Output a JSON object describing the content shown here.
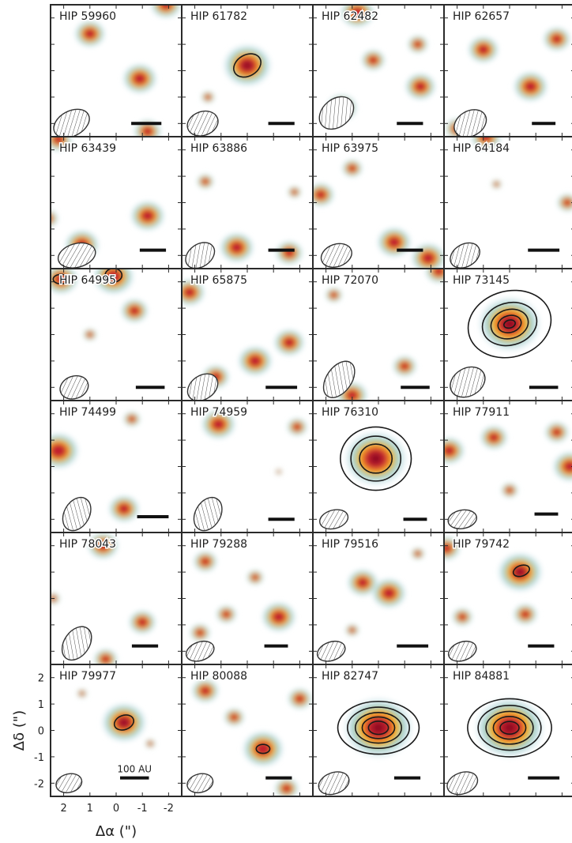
{
  "chart_data": {
    "type": "heatmap",
    "layout": {
      "rows": 6,
      "cols": 4,
      "clipped_right_edge": true
    },
    "xlabel": "Δα (\")",
    "ylabel": "Δδ (\")",
    "xlim": [
      2.5,
      -2.5
    ],
    "ylim": [
      -2.5,
      2.5
    ],
    "x_ticks": [
      2,
      1,
      0,
      -1,
      -2
    ],
    "y_ticks": [
      2,
      1,
      0,
      -1,
      -2
    ],
    "scale_bar_label": "100 AU",
    "panels": [
      {
        "name": "HIP 59960",
        "beam": {
          "x": 1.7,
          "y": -2.0,
          "major": 1.45,
          "minor": 0.95,
          "angle": -28
        },
        "scale_bar": {
          "x": -1.15,
          "y": -2.0,
          "length": 1.15
        },
        "blobs": [
          {
            "x": 1.0,
            "y": 1.4,
            "amp": 0.9
          },
          {
            "x": -0.9,
            "y": -0.3,
            "amp": 1.0
          },
          {
            "x": -1.9,
            "y": 2.5,
            "amp": 0.9
          },
          {
            "x": -1.2,
            "y": -2.3,
            "amp": 0.8
          }
        ],
        "contours": []
      },
      {
        "name": "HIP 61782",
        "beam": {
          "x": 1.7,
          "y": -2.0,
          "major": 1.2,
          "minor": 0.9,
          "angle": -20
        },
        "scale_bar": {
          "x": -1.3,
          "y": -2.0,
          "length": 1.0
        },
        "blobs": [
          {
            "x": 0.0,
            "y": 0.2,
            "amp": 1.4
          },
          {
            "x": 1.5,
            "y": -1.0,
            "amp": 0.4
          }
        ],
        "contours": [
          {
            "x": 0.0,
            "y": 0.2,
            "rx": 0.55,
            "ry": 0.4,
            "angle": -30
          }
        ]
      },
      {
        "name": "HIP 62482",
        "beam": {
          "x": 1.6,
          "y": -1.6,
          "major": 1.45,
          "minor": 1.05,
          "angle": -40
        },
        "scale_bar": {
          "x": -1.2,
          "y": -2.0,
          "length": 1.0
        },
        "blobs": [
          {
            "x": 0.8,
            "y": 2.2,
            "amp": 1.0
          },
          {
            "x": 0.2,
            "y": 0.4,
            "amp": 0.7
          },
          {
            "x": -1.6,
            "y": -0.6,
            "amp": 0.9
          },
          {
            "x": 1.4,
            "y": -1.4,
            "amp": 0.9
          },
          {
            "x": -1.5,
            "y": 1.0,
            "amp": 0.6
          }
        ],
        "contours": []
      },
      {
        "name": "HIP 62657",
        "beam": {
          "x": 1.5,
          "y": -2.0,
          "major": 1.3,
          "minor": 0.95,
          "angle": -30
        },
        "scale_bar": {
          "x": -1.3,
          "y": -2.0,
          "length": 0.9
        },
        "blobs": [
          {
            "x": 1.0,
            "y": 0.8,
            "amp": 0.9
          },
          {
            "x": -0.8,
            "y": -0.6,
            "amp": 1.0
          },
          {
            "x": -1.8,
            "y": 1.2,
            "amp": 0.8
          },
          {
            "x": 2.0,
            "y": -2.2,
            "amp": 0.7
          }
        ],
        "contours": []
      },
      {
        "name": "HIP 63439",
        "beam": {
          "x": 1.5,
          "y": -2.0,
          "major": 1.45,
          "minor": 0.9,
          "angle": -15
        },
        "scale_bar": {
          "x": -1.4,
          "y": -1.8,
          "length": 1.0
        },
        "blobs": [
          {
            "x": 2.2,
            "y": 2.4,
            "amp": 0.8
          },
          {
            "x": 1.3,
            "y": -1.6,
            "amp": 1.0
          },
          {
            "x": -1.2,
            "y": -0.5,
            "amp": 1.0
          },
          {
            "x": 2.6,
            "y": -0.6,
            "amp": 0.6
          }
        ],
        "contours": []
      },
      {
        "name": "HIP 63886",
        "beam": {
          "x": 1.8,
          "y": -2.0,
          "major": 1.2,
          "minor": 0.85,
          "angle": -35
        },
        "scale_bar": {
          "x": -1.3,
          "y": -1.8,
          "length": 1.0
        },
        "blobs": [
          {
            "x": 0.4,
            "y": -1.7,
            "amp": 1.0
          },
          {
            "x": -1.6,
            "y": -1.9,
            "amp": 0.8
          },
          {
            "x": 1.6,
            "y": 0.8,
            "amp": 0.5
          },
          {
            "x": -1.8,
            "y": 0.4,
            "amp": 0.4
          }
        ],
        "contours": []
      },
      {
        "name": "HIP 63975",
        "beam": {
          "x": 1.6,
          "y": -2.0,
          "major": 1.2,
          "minor": 0.85,
          "angle": -20
        },
        "scale_bar": {
          "x": -1.2,
          "y": -1.8,
          "length": 1.0
        },
        "blobs": [
          {
            "x": 2.2,
            "y": 0.3,
            "amp": 0.8
          },
          {
            "x": -0.6,
            "y": -1.5,
            "amp": 1.0
          },
          {
            "x": -1.9,
            "y": -2.1,
            "amp": 1.0
          },
          {
            "x": 1.0,
            "y": 1.3,
            "amp": 0.6
          }
        ],
        "contours": []
      },
      {
        "name": "HIP 64184",
        "beam": {
          "x": 1.7,
          "y": -2.0,
          "major": 1.2,
          "minor": 0.85,
          "angle": -30
        },
        "scale_bar": {
          "x": -1.3,
          "y": -1.8,
          "length": 1.2
        },
        "blobs": [
          {
            "x": 0.9,
            "y": 2.5,
            "amp": 0.9
          },
          {
            "x": -2.2,
            "y": 0.0,
            "amp": 0.6
          },
          {
            "x": 0.5,
            "y": 0.7,
            "amp": 0.3
          }
        ],
        "contours": []
      },
      {
        "name": "HIP 64995",
        "beam": {
          "x": 1.6,
          "y": -2.0,
          "major": 1.1,
          "minor": 0.85,
          "angle": -20
        },
        "scale_bar": {
          "x": -1.3,
          "y": -2.0,
          "length": 1.1
        },
        "blobs": [
          {
            "x": 2.1,
            "y": 2.1,
            "amp": 1.0
          },
          {
            "x": 0.1,
            "y": 2.2,
            "amp": 1.2
          },
          {
            "x": -0.7,
            "y": 0.9,
            "amp": 0.8
          },
          {
            "x": 1.0,
            "y": 0.0,
            "amp": 0.4
          }
        ],
        "contours": [
          {
            "x": 2.1,
            "y": 2.1,
            "rx": 0.3,
            "ry": 0.18,
            "angle": 0
          },
          {
            "x": 0.1,
            "y": 2.25,
            "rx": 0.32,
            "ry": 0.26,
            "angle": 0
          }
        ]
      },
      {
        "name": "HIP 65875",
        "beam": {
          "x": 1.7,
          "y": -2.0,
          "major": 1.25,
          "minor": 0.9,
          "angle": -35
        },
        "scale_bar": {
          "x": -1.3,
          "y": -2.0,
          "length": 1.2
        },
        "blobs": [
          {
            "x": 2.2,
            "y": 1.6,
            "amp": 0.9
          },
          {
            "x": -0.3,
            "y": -1.0,
            "amp": 1.0
          },
          {
            "x": 1.2,
            "y": -1.6,
            "amp": 0.8
          },
          {
            "x": -1.6,
            "y": -0.3,
            "amp": 0.9
          }
        ],
        "contours": []
      },
      {
        "name": "HIP 72070",
        "beam": {
          "x": 1.5,
          "y": -1.7,
          "major": 1.55,
          "minor": 0.95,
          "angle": -55
        },
        "scale_bar": {
          "x": -1.4,
          "y": -2.0,
          "length": 1.1
        },
        "blobs": [
          {
            "x": 1.0,
            "y": -2.3,
            "amp": 0.9
          },
          {
            "x": -1.0,
            "y": -1.2,
            "amp": 0.7
          },
          {
            "x": -2.3,
            "y": 2.4,
            "amp": 0.8
          },
          {
            "x": 1.7,
            "y": 1.5,
            "amp": 0.5
          }
        ],
        "contours": []
      },
      {
        "name": "HIP 73145",
        "beam": {
          "x": 1.6,
          "y": -1.8,
          "major": 1.4,
          "minor": 1.05,
          "angle": -30
        },
        "scale_bar": {
          "x": -1.3,
          "y": -2.0,
          "length": 1.1
        },
        "blobs": [
          {
            "x": 0.0,
            "y": 0.4,
            "amp": 1.8
          }
        ],
        "contours": [
          {
            "x": 0.0,
            "y": 0.4,
            "rx": 1.6,
            "ry": 1.25,
            "angle": -15
          },
          {
            "x": 0.0,
            "y": 0.4,
            "rx": 1.05,
            "ry": 0.8,
            "angle": -15
          },
          {
            "x": 0.0,
            "y": 0.4,
            "rx": 0.72,
            "ry": 0.55,
            "angle": -15
          },
          {
            "x": 0.0,
            "y": 0.4,
            "rx": 0.45,
            "ry": 0.32,
            "angle": -15
          },
          {
            "x": 0.0,
            "y": 0.4,
            "rx": 0.22,
            "ry": 0.15,
            "angle": -15
          }
        ]
      },
      {
        "name": "HIP 74499",
        "beam": {
          "x": 1.5,
          "y": -1.8,
          "major": 1.35,
          "minor": 0.95,
          "angle": -60
        },
        "scale_bar": {
          "x": -1.4,
          "y": -1.9,
          "length": 1.2
        },
        "blobs": [
          {
            "x": 2.2,
            "y": 0.6,
            "amp": 1.2
          },
          {
            "x": -0.3,
            "y": -1.6,
            "amp": 0.9
          },
          {
            "x": -0.6,
            "y": 1.8,
            "amp": 0.5
          }
        ],
        "contours": []
      },
      {
        "name": "HIP 74959",
        "beam": {
          "x": 1.5,
          "y": -1.8,
          "major": 1.35,
          "minor": 0.95,
          "angle": -60
        },
        "scale_bar": {
          "x": -1.3,
          "y": -2.0,
          "length": 1.0
        },
        "blobs": [
          {
            "x": 1.1,
            "y": 1.6,
            "amp": 1.0
          },
          {
            "x": -1.9,
            "y": 1.5,
            "amp": 0.6
          },
          {
            "x": -1.2,
            "y": -0.2,
            "amp": 0.2
          }
        ],
        "contours": []
      },
      {
        "name": "HIP 76310",
        "beam": {
          "x": 1.7,
          "y": -2.0,
          "major": 1.1,
          "minor": 0.7,
          "angle": -15
        },
        "scale_bar": {
          "x": -1.4,
          "y": -2.0,
          "length": 0.9
        },
        "blobs": [
          {
            "x": 0.1,
            "y": 0.3,
            "amp": 1.8
          }
        ],
        "contours": [
          {
            "x": 0.1,
            "y": 0.3,
            "rx": 1.35,
            "ry": 1.2,
            "angle": 0
          },
          {
            "x": 0.1,
            "y": 0.3,
            "rx": 0.95,
            "ry": 0.85,
            "angle": 0
          },
          {
            "x": 0.1,
            "y": 0.3,
            "rx": 0.62,
            "ry": 0.55,
            "angle": 0
          }
        ]
      },
      {
        "name": "HIP 77911",
        "beam": {
          "x": 1.8,
          "y": -2.0,
          "major": 1.1,
          "minor": 0.7,
          "angle": -10
        },
        "scale_bar": {
          "x": -1.4,
          "y": -1.8,
          "length": 0.9
        },
        "blobs": [
          {
            "x": 2.3,
            "y": 0.6,
            "amp": 0.9
          },
          {
            "x": 0.6,
            "y": 1.1,
            "amp": 0.8
          },
          {
            "x": -1.8,
            "y": 1.3,
            "amp": 0.7
          },
          {
            "x": -2.3,
            "y": 0.0,
            "amp": 1.0
          },
          {
            "x": 0.0,
            "y": -0.9,
            "amp": 0.5
          }
        ],
        "contours": []
      },
      {
        "name": "HIP 78043",
        "beam": {
          "x": 1.5,
          "y": -1.7,
          "major": 1.4,
          "minor": 0.95,
          "angle": -55
        },
        "scale_bar": {
          "x": -1.1,
          "y": -1.8,
          "length": 1.0
        },
        "blobs": [
          {
            "x": 0.5,
            "y": 2.0,
            "amp": 0.9
          },
          {
            "x": -1.0,
            "y": -0.9,
            "amp": 0.8
          },
          {
            "x": 0.4,
            "y": -2.3,
            "amp": 0.7
          },
          {
            "x": 2.4,
            "y": 0.0,
            "amp": 0.4
          }
        ],
        "contours": []
      },
      {
        "name": "HIP 79288",
        "beam": {
          "x": 1.8,
          "y": -2.0,
          "major": 1.1,
          "minor": 0.7,
          "angle": -20
        },
        "scale_bar": {
          "x": -1.1,
          "y": -1.8,
          "length": 0.9
        },
        "blobs": [
          {
            "x": 1.6,
            "y": 1.4,
            "amp": 0.7
          },
          {
            "x": -1.2,
            "y": -0.7,
            "amp": 1.0
          },
          {
            "x": 0.8,
            "y": -0.6,
            "amp": 0.6
          },
          {
            "x": -0.3,
            "y": 0.8,
            "amp": 0.5
          },
          {
            "x": 1.8,
            "y": -1.3,
            "amp": 0.6
          }
        ],
        "contours": []
      },
      {
        "name": "HIP 79516",
        "beam": {
          "x": 1.8,
          "y": -2.0,
          "major": 1.1,
          "minor": 0.7,
          "angle": -20
        },
        "scale_bar": {
          "x": -1.3,
          "y": -1.8,
          "length": 1.2
        },
        "blobs": [
          {
            "x": 0.6,
            "y": 0.6,
            "amp": 0.9
          },
          {
            "x": -0.4,
            "y": 0.2,
            "amp": 1.0
          },
          {
            "x": 1.0,
            "y": -1.2,
            "amp": 0.4
          },
          {
            "x": -1.5,
            "y": 1.7,
            "amp": 0.4
          }
        ],
        "contours": []
      },
      {
        "name": "HIP 79742",
        "beam": {
          "x": 1.8,
          "y": -2.0,
          "major": 1.1,
          "minor": 0.7,
          "angle": -20
        },
        "scale_bar": {
          "x": -1.2,
          "y": -1.8,
          "length": 1.0
        },
        "blobs": [
          {
            "x": -0.4,
            "y": 1.0,
            "amp": 1.3
          },
          {
            "x": 2.4,
            "y": 1.9,
            "amp": 0.8
          },
          {
            "x": -0.6,
            "y": -0.6,
            "amp": 0.7
          },
          {
            "x": 1.8,
            "y": -0.7,
            "amp": 0.6
          }
        ],
        "contours": [
          {
            "x": -0.45,
            "y": 1.05,
            "rx": 0.32,
            "ry": 0.2,
            "angle": -20
          }
        ]
      },
      {
        "name": "HIP 79977",
        "beam": {
          "x": 1.8,
          "y": -2.0,
          "major": 1.0,
          "minor": 0.7,
          "angle": -15
        },
        "scale_bar": {
          "x": -0.7,
          "y": -1.8,
          "length": 1.1,
          "label": true
        },
        "blobs": [
          {
            "x": -0.3,
            "y": 0.3,
            "amp": 1.3
          },
          {
            "x": 1.3,
            "y": 1.4,
            "amp": 0.3
          },
          {
            "x": -1.3,
            "y": -0.5,
            "amp": 0.3
          }
        ],
        "contours": [
          {
            "x": -0.3,
            "y": 0.3,
            "rx": 0.38,
            "ry": 0.27,
            "angle": -20
          }
        ]
      },
      {
        "name": "HIP 80088",
        "beam": {
          "x": 1.8,
          "y": -2.0,
          "major": 1.0,
          "minor": 0.7,
          "angle": -15
        },
        "scale_bar": {
          "x": -1.2,
          "y": -1.8,
          "length": 1.0
        },
        "blobs": [
          {
            "x": 1.6,
            "y": 1.5,
            "amp": 0.8
          },
          {
            "x": -0.6,
            "y": -0.7,
            "amp": 1.2
          },
          {
            "x": -2.0,
            "y": 1.2,
            "amp": 0.7
          },
          {
            "x": 0.5,
            "y": 0.5,
            "amp": 0.6
          },
          {
            "x": -1.5,
            "y": -2.2,
            "amp": 0.7
          }
        ],
        "contours": [
          {
            "x": -0.6,
            "y": -0.7,
            "rx": 0.26,
            "ry": 0.17,
            "angle": 0
          }
        ]
      },
      {
        "name": "HIP 82747",
        "beam": {
          "x": 1.7,
          "y": -2.0,
          "major": 1.2,
          "minor": 0.8,
          "angle": -20
        },
        "scale_bar": {
          "x": -1.1,
          "y": -1.8,
          "length": 1.0
        },
        "blobs": [
          {
            "x": 0.0,
            "y": 0.1,
            "amp": 2.0
          }
        ],
        "contours": [
          {
            "x": 0.0,
            "y": 0.1,
            "rx": 1.55,
            "ry": 1.0,
            "angle": 0
          },
          {
            "x": 0.0,
            "y": 0.1,
            "rx": 1.18,
            "ry": 0.78,
            "angle": 0
          },
          {
            "x": 0.0,
            "y": 0.1,
            "rx": 0.88,
            "ry": 0.58,
            "angle": 0
          },
          {
            "x": 0.0,
            "y": 0.1,
            "rx": 0.62,
            "ry": 0.41,
            "angle": 0
          },
          {
            "x": 0.0,
            "y": 0.1,
            "rx": 0.38,
            "ry": 0.25,
            "angle": 0
          }
        ]
      },
      {
        "name": "HIP 84881",
        "beam": {
          "x": 1.8,
          "y": -2.0,
          "major": 1.2,
          "minor": 0.8,
          "angle": -20
        },
        "scale_bar": {
          "x": -1.3,
          "y": -1.8,
          "length": 1.2
        },
        "blobs": [
          {
            "x": 0.0,
            "y": 0.1,
            "amp": 2.0
          }
        ],
        "contours": [
          {
            "x": 0.0,
            "y": 0.1,
            "rx": 1.6,
            "ry": 1.1,
            "angle": 0
          },
          {
            "x": 0.0,
            "y": 0.1,
            "rx": 1.2,
            "ry": 0.85,
            "angle": 0
          },
          {
            "x": 0.0,
            "y": 0.1,
            "rx": 0.9,
            "ry": 0.62,
            "angle": 0
          },
          {
            "x": 0.0,
            "y": 0.1,
            "rx": 0.62,
            "ry": 0.43,
            "angle": 0
          },
          {
            "x": 0.0,
            "y": 0.1,
            "rx": 0.36,
            "ry": 0.24,
            "angle": 0
          }
        ]
      }
    ],
    "colors": {
      "low": "#dcecef",
      "mid_low": "#8fc7bf",
      "mid": "#e8c62a",
      "high": "#f47a2b",
      "peak": "#c01e2f",
      "max": "#8c1024",
      "contour": "#1a1a1a",
      "frame": "#2a2a2a"
    }
  }
}
